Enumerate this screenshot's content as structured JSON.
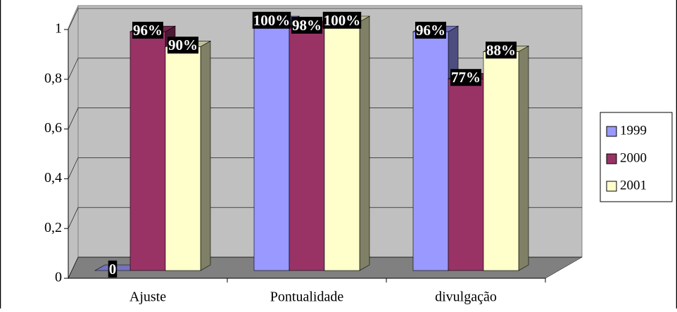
{
  "chart_data": {
    "type": "bar3d",
    "categories": [
      "Ajuste",
      "Pontualidade",
      "divulgação"
    ],
    "series": [
      {
        "name": "1999",
        "color": "#9999ff",
        "values": [
          0,
          1,
          0.96
        ],
        "value_labels": [
          "0",
          "100%",
          "96%"
        ]
      },
      {
        "name": "2000",
        "color": "#993366",
        "values": [
          0.96,
          0.98,
          0.77
        ],
        "value_labels": [
          "96%",
          "98%",
          "77%"
        ]
      },
      {
        "name": "2001",
        "color": "#ffffcc",
        "values": [
          0.9,
          1,
          0.88
        ],
        "value_labels": [
          "90%",
          "100%",
          "88%"
        ]
      }
    ],
    "ylim": [
      0,
      1
    ],
    "yticks": [
      0,
      {
        "value": 0.2,
        "label": "0,2"
      },
      {
        "value": 0.4,
        "label": "0,4"
      },
      {
        "value": 0.6,
        "label": "0,6"
      },
      {
        "value": 0.8,
        "label": "0,8"
      },
      1
    ],
    "grid": true,
    "legend": "right"
  }
}
